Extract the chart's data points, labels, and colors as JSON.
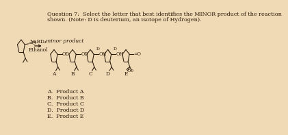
{
  "background_color": "#f0d9b5",
  "title_line1": "Question 7:  Select the letter that best identifies the MINOR product of the reaction",
  "title_line2": "shown. (Note: D is deuterium, an isotope of Hydrogen).",
  "reagent_line1": "NaBD₄",
  "reagent_line2": "Ethanol",
  "minor_product_label": "minor product",
  "answer_choices": [
    "A.  Product A",
    "B.  Product B",
    "C.  Product C",
    "D.  Product D",
    "E.  Product E"
  ],
  "product_labels": [
    "A",
    "B",
    "C",
    "D",
    "E"
  ],
  "text_color": "#2a1a0a",
  "font_size_title": 5.8,
  "font_size_small": 5.2,
  "font_size_product": 5.5
}
